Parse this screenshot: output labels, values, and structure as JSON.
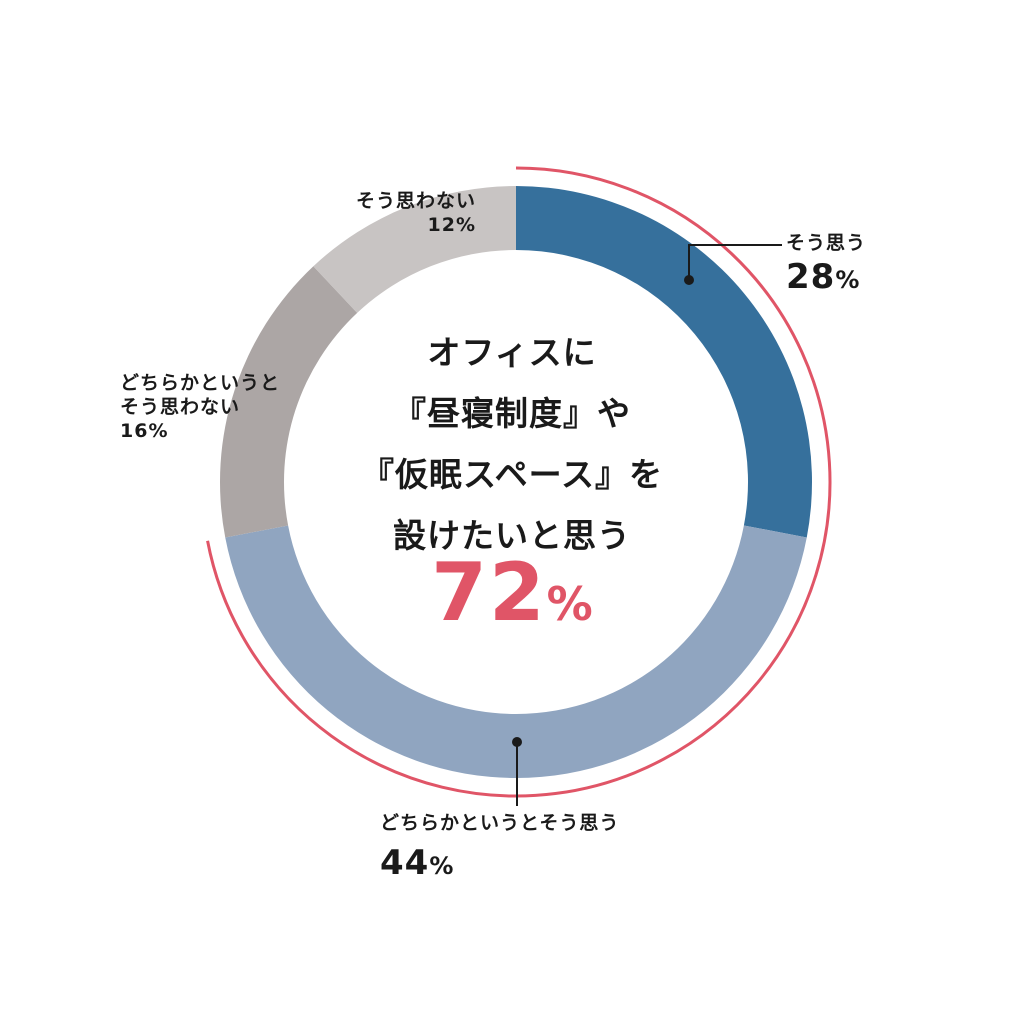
{
  "chart_data": {
    "type": "pie",
    "donut": true,
    "categories": [
      "そう思う",
      "どちらかというとそう思う",
      "どちらかというとそう思わない",
      "そう思わない"
    ],
    "values": [
      28,
      44,
      16,
      12
    ],
    "unit": "%",
    "colors": [
      "#36709c",
      "#90a5c0",
      "#aca6a5",
      "#c8c4c3"
    ],
    "highlight_color": "#e05567",
    "title": "オフィスに『昼寝制度』や『仮眠スペース』を設けたいと思う",
    "title_lines": [
      "オフィスに",
      "『昼寝制度』や",
      "『仮眠スペース』を",
      "設けたいと思う"
    ],
    "highlight_value": "72",
    "highlight_unit": "%",
    "labels": {
      "s1_name": "そう思う",
      "s1_value": "28",
      "s2_name": "どちらかというとそう思う",
      "s2_value": "44",
      "s3_name_line1": "どちらかというと",
      "s3_name_line2": "そう思わない",
      "s3_pct": "16%",
      "s4_name": "そう思わない",
      "s4_pct": "12%",
      "unit": "%"
    }
  }
}
